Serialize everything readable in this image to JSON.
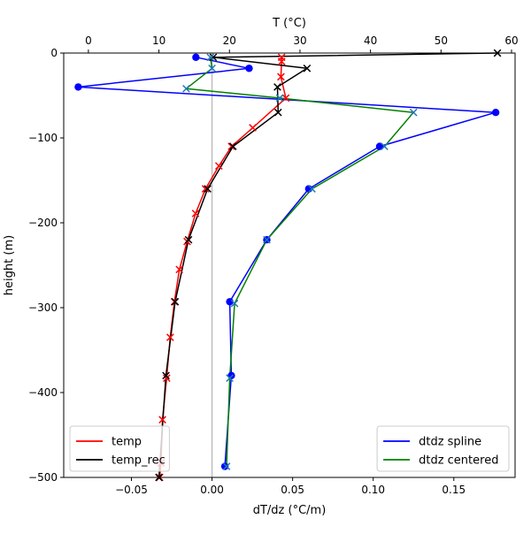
{
  "chart_data": {
    "type": "line",
    "title": "",
    "ylabel": "height (m)",
    "ylim": [
      -500,
      0
    ],
    "yticks": [
      0,
      -100,
      -200,
      -300,
      -400,
      -500
    ],
    "bottom_axis": {
      "label": "dT/dz (°C/m)",
      "lim": [
        -0.092,
        0.188
      ],
      "ticks": [
        -0.05,
        0.0,
        0.05,
        0.1,
        0.15
      ],
      "tick_labels": [
        "−0.05",
        "0.00",
        "0.05",
        "0.10",
        "0.15"
      ]
    },
    "top_axis": {
      "label": "T (°C)",
      "lim": [
        -3.5,
        60.5
      ],
      "ticks": [
        0,
        10,
        20,
        30,
        40,
        50,
        60
      ],
      "tick_labels": [
        "0",
        "10",
        "20",
        "30",
        "40",
        "50",
        "60"
      ]
    },
    "vline": {
      "x": 0.0,
      "color": "#bfbfbf"
    },
    "series": [
      {
        "name": "temp",
        "axis": "top",
        "color": "#ff0000",
        "marker": "x",
        "points": [
          [
            27.4,
            -5
          ],
          [
            27.4,
            -10
          ],
          [
            27.3,
            -28
          ],
          [
            28.0,
            -53
          ],
          [
            23.3,
            -88
          ],
          [
            20.3,
            -110
          ],
          [
            18.5,
            -133
          ],
          [
            16.6,
            -160
          ],
          [
            15.2,
            -189
          ],
          [
            14.0,
            -222
          ],
          [
            12.9,
            -255
          ],
          [
            12.2,
            -293
          ],
          [
            11.6,
            -335
          ],
          [
            11.1,
            -383
          ],
          [
            10.5,
            -432
          ],
          [
            10.3,
            -483
          ],
          [
            10.1,
            -500
          ]
        ]
      },
      {
        "name": "temp_rec",
        "axis": "top",
        "color": "#000000",
        "marker": "x",
        "points": [
          [
            58.0,
            0
          ],
          [
            17.7,
            -5
          ],
          [
            31.0,
            -18
          ],
          [
            26.8,
            -40
          ],
          [
            26.9,
            -70
          ],
          [
            20.5,
            -110
          ],
          [
            16.9,
            -160
          ],
          [
            14.2,
            -220
          ],
          [
            12.3,
            -293
          ],
          [
            11.0,
            -380
          ],
          [
            10.0,
            -500
          ]
        ]
      },
      {
        "name": "dtdz spline",
        "axis": "bottom",
        "color": "#0000ff",
        "marker": "o",
        "points": [
          [
            -0.01,
            -5
          ],
          [
            0.023,
            -18
          ],
          [
            -0.083,
            -40
          ],
          [
            0.176,
            -70
          ],
          [
            0.104,
            -110
          ],
          [
            0.06,
            -160
          ],
          [
            0.034,
            -220
          ],
          [
            0.011,
            -293
          ],
          [
            0.012,
            -380
          ],
          [
            0.008,
            -487
          ]
        ]
      },
      {
        "name": "dtdz centered",
        "axis": "bottom",
        "color": "#008000",
        "marker": "x",
        "marker_color": "#1f77b4",
        "points": [
          [
            -0.001,
            -5
          ],
          [
            0.0,
            -18
          ],
          [
            -0.016,
            -42
          ],
          [
            0.042,
            -53
          ],
          [
            0.125,
            -70
          ],
          [
            0.107,
            -110
          ],
          [
            0.062,
            -160
          ],
          [
            0.034,
            -220
          ],
          [
            0.014,
            -295
          ],
          [
            0.011,
            -383
          ],
          [
            0.009,
            -487
          ]
        ]
      }
    ],
    "legends": [
      {
        "placement": "lower-left",
        "entries": [
          "temp",
          "temp_rec"
        ]
      },
      {
        "placement": "lower-right",
        "entries": [
          "dtdz spline",
          "dtdz centered"
        ]
      }
    ]
  }
}
